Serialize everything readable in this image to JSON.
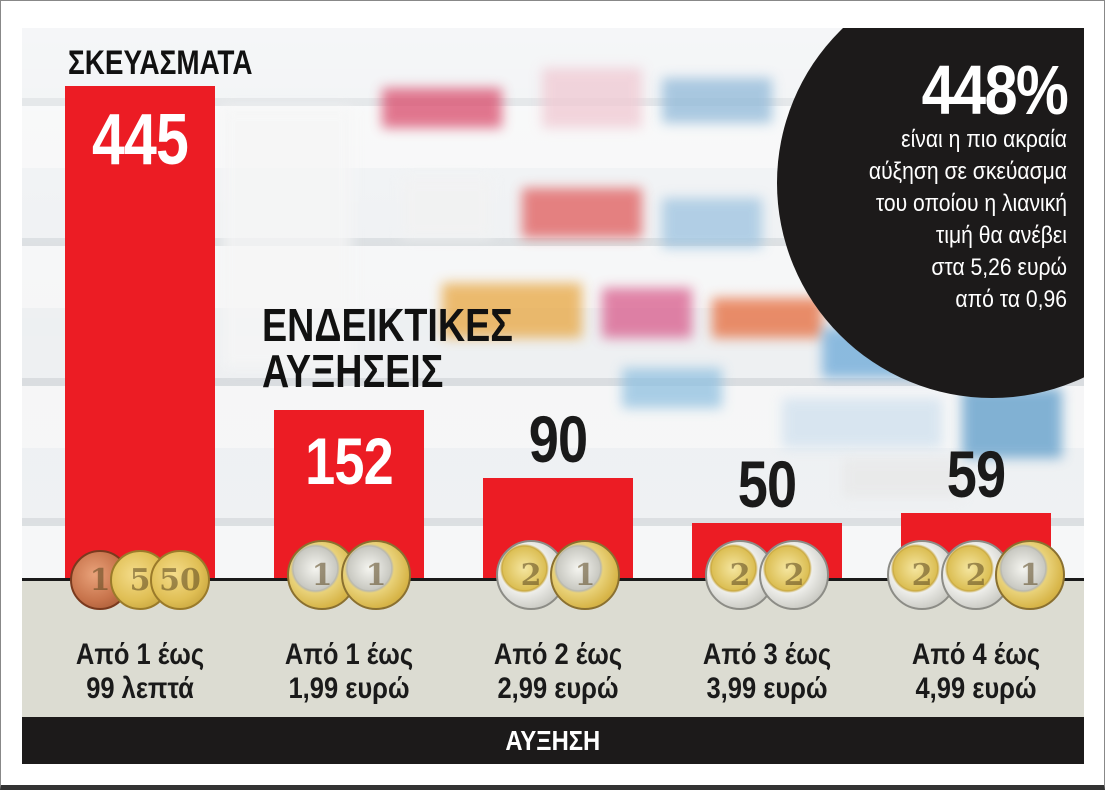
{
  "header": {
    "left_heading": "ΣΚΕΥΑΣΜΑΤΑ",
    "mid_heading_line1": "ΕΝΔΕΙΚΤΙΚΕΣ",
    "mid_heading_line2": "ΑΥΞΗΣΕΙΣ"
  },
  "callout": {
    "percent": "448%",
    "lines": [
      "είναι η πιο ακραία",
      "αύξηση σε σκεύασμα",
      "του οποίου η λιανική",
      "τιμή θα ανέβει",
      "στα 5,26 ευρώ",
      "από τα 0,96"
    ]
  },
  "chart_data": {
    "type": "bar",
    "title": "",
    "xlabel": "ΑΥΞΗΣΗ",
    "ylabel": "ΣΚΕΥΑΣΜΑΤΑ",
    "categories": [
      [
        "Από 1 έως",
        "99 λεπτά"
      ],
      [
        "Από 1 έως",
        "1,99 ευρώ"
      ],
      [
        "Από 2 έως",
        "2,99 ευρώ"
      ],
      [
        "Από 3 έως",
        "3,99 ευρώ"
      ],
      [
        "Από 4 έως",
        "4,99 ευρώ"
      ]
    ],
    "values": [
      445,
      152,
      90,
      50,
      59
    ],
    "value_labels": [
      "445",
      "152",
      "90",
      "50",
      "59"
    ],
    "ylim": [
      0,
      445
    ],
    "bar_color": "#ec1c24",
    "grid": false
  },
  "footer": {
    "label": "ΑΥΞΗΣΗ"
  },
  "colors": {
    "accent": "#ec1c24",
    "dark": "#1c1a1a",
    "ground": "#dcdcd2"
  },
  "coins": [
    [
      "1 cent",
      "5 cent",
      "50 cent"
    ],
    [
      "1 euro",
      "1 euro"
    ],
    [
      "2 euro",
      "1 euro"
    ],
    [
      "2 euro",
      "2 euro"
    ],
    [
      "2 euro",
      "2 euro",
      "1 euro"
    ]
  ]
}
